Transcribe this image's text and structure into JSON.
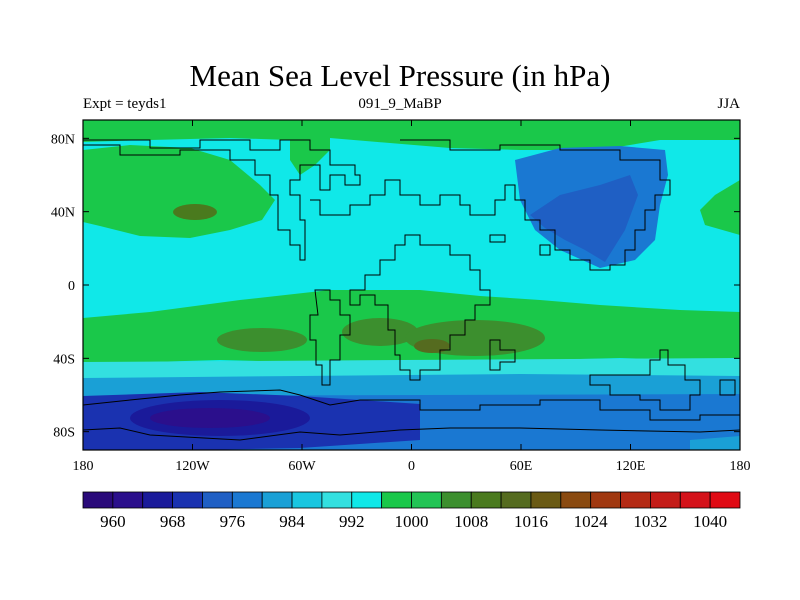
{
  "title": "Mean Sea Level Pressure (in hPa)",
  "left_label": "Expt = teyds1",
  "center_label": "091_9_MaBP",
  "right_label": "JJA",
  "lat_ticks": [
    {
      "label": "80N",
      "lat": 80
    },
    {
      "label": "40N",
      "lat": 40
    },
    {
      "label": "0",
      "lat": 0
    },
    {
      "label": "40S",
      "lat": -40
    },
    {
      "label": "80S",
      "lat": -80
    }
  ],
  "lon_ticks": [
    {
      "label": "180",
      "lon": -180
    },
    {
      "label": "120W",
      "lon": -120
    },
    {
      "label": "60W",
      "lon": -60
    },
    {
      "label": "0",
      "lon": 0
    },
    {
      "label": "60E",
      "lon": 60
    },
    {
      "label": "120E",
      "lon": 120
    },
    {
      "label": "180",
      "lon": 180
    }
  ],
  "colorbar": {
    "colors": [
      "#2a0a7a",
      "#2b0f8c",
      "#1a1a9a",
      "#1a32b0",
      "#1f5fc4",
      "#1a78d2",
      "#1aa0d6",
      "#19c6e0",
      "#33e0e0",
      "#10e8e8",
      "#1ac84a",
      "#22c455",
      "#3c8f2e",
      "#4a7a1e",
      "#556b1f",
      "#6a5a14",
      "#8a4a10",
      "#a03810",
      "#b42a14",
      "#c41c18",
      "#d4121a",
      "#e00a14"
    ],
    "labels": [
      "960",
      "968",
      "976",
      "984",
      "992",
      "1000",
      "1008",
      "1016",
      "1024",
      "1032",
      "1040"
    ]
  }
}
